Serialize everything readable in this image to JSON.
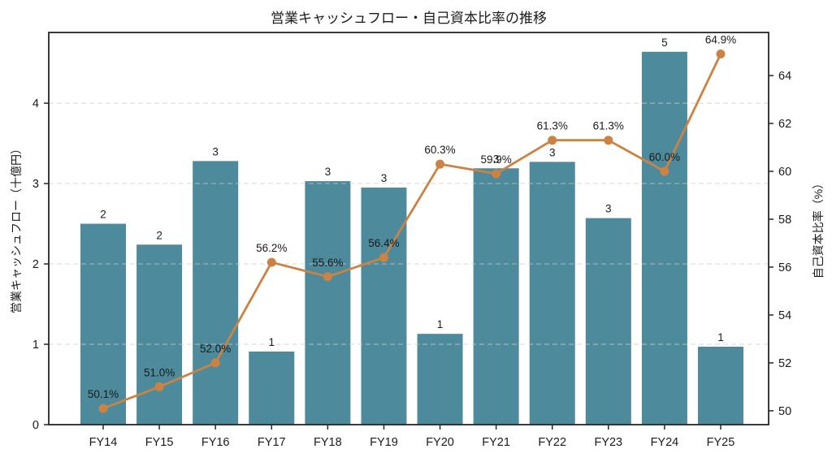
{
  "title": "営業キャッシュフロー・自己資本比率の推移",
  "chart_data": {
    "type": "bar",
    "subtype": "combo-bar-line-dual-axis",
    "categories": [
      "FY14",
      "FY15",
      "FY16",
      "FY17",
      "FY18",
      "FY19",
      "FY20",
      "FY21",
      "FY22",
      "FY23",
      "FY24",
      "FY25"
    ],
    "series": [
      {
        "name": "営業キャッシュフロー",
        "type": "bar",
        "axis": "left",
        "values": [
          2.5,
          2.24,
          3.28,
          0.91,
          3.03,
          2.95,
          1.13,
          3.19,
          3.27,
          2.57,
          4.64,
          0.97
        ],
        "labels": [
          "2",
          "2",
          "3",
          "1",
          "3",
          "3",
          "1",
          "3",
          "3",
          "3",
          "5",
          "1"
        ],
        "color": "#4d8b9c"
      },
      {
        "name": "自己資本比率",
        "type": "line",
        "axis": "right",
        "values": [
          50.1,
          51.0,
          52.0,
          56.2,
          55.6,
          56.4,
          60.3,
          59.9,
          61.3,
          61.3,
          60.0,
          64.9
        ],
        "labels": [
          "50.1%",
          "51.0%",
          "52.0%",
          "56.2%",
          "55.6%",
          "56.4%",
          "60.3%",
          "59.9%",
          "61.3%",
          "61.3%",
          "60.0%",
          "64.9%"
        ],
        "color": "#cc8242"
      }
    ],
    "left_axis": {
      "label": "営業キャッシュフロー（十億円）",
      "ticks": [
        0,
        1,
        2,
        3,
        4
      ],
      "lim": [
        0,
        4.88
      ]
    },
    "right_axis": {
      "label": "自己資本比率（%）",
      "ticks": [
        50,
        52,
        54,
        56,
        58,
        60,
        62,
        64
      ],
      "lim": [
        49.42,
        65.8
      ]
    },
    "grid": {
      "horizontal": true,
      "style": "dashed",
      "at": "left-axis-ticks",
      "color": "#d9d9d9"
    },
    "legend": "none",
    "colors": {
      "bar": "#4d8b9c",
      "line": "#cc8242",
      "spine": "#262626",
      "grid": "#cccccc"
    }
  }
}
